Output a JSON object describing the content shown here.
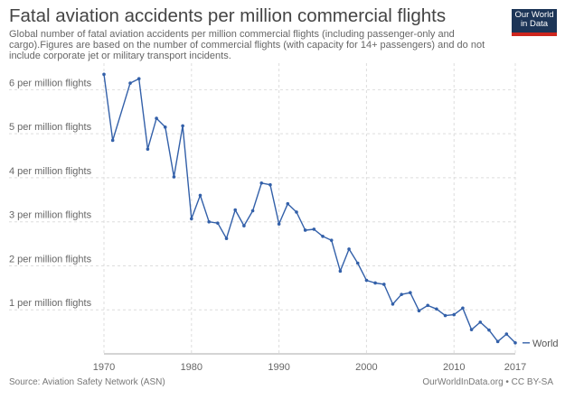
{
  "header": {
    "title": "Fatal aviation accidents per million commercial flights",
    "subtitle": "Global number of fatal aviation accidents per million commercial flights (including passenger-only and cargo).Figures are based on the number of commercial flights (with capacity for 14+ passengers) and do not include corporate jet or military transport incidents."
  },
  "logo": {
    "line1": "Our World",
    "line2": "in Data"
  },
  "footer": {
    "source": "Source: Aviation Safety Network (ASN)",
    "credit": "OurWorldInData.org • CC BY-SA"
  },
  "colors": {
    "series": "#3360a9",
    "grid": "#dddddd",
    "logo_bg": "#1d3557",
    "logo_accent": "#ce261e"
  },
  "chart_data": {
    "type": "line",
    "title": "Fatal aviation accidents per million commercial flights",
    "xlabel": "",
    "ylabel": "",
    "xlim": [
      1970,
      2017
    ],
    "ylim": [
      0,
      6.5
    ],
    "x_ticks": [
      1970,
      1980,
      1990,
      2000,
      2010,
      2017
    ],
    "y_ticks": [
      {
        "value": 1,
        "label": "1 per million flights"
      },
      {
        "value": 2,
        "label": "2 per million flights"
      },
      {
        "value": 3,
        "label": "3 per million flights"
      },
      {
        "value": 4,
        "label": "4 per million flights"
      },
      {
        "value": 5,
        "label": "5 per million flights"
      },
      {
        "value": 6,
        "label": "6 per million flights"
      }
    ],
    "grid": true,
    "legend": "right",
    "series": [
      {
        "name": "World",
        "x": [
          1970,
          1971,
          1973,
          1974,
          1975,
          1976,
          1977,
          1978,
          1979,
          1980,
          1981,
          1982,
          1983,
          1984,
          1985,
          1986,
          1987,
          1988,
          1989,
          1990,
          1991,
          1992,
          1993,
          1994,
          1995,
          1996,
          1997,
          1998,
          1999,
          2000,
          2001,
          2002,
          2003,
          2004,
          2005,
          2006,
          2007,
          2008,
          2009,
          2010,
          2011,
          2012,
          2013,
          2014,
          2015,
          2016,
          2017
        ],
        "values": [
          6.35,
          4.85,
          6.15,
          6.25,
          4.65,
          5.35,
          5.15,
          4.02,
          5.18,
          3.07,
          3.6,
          3.0,
          2.97,
          2.62,
          3.27,
          2.91,
          3.25,
          3.88,
          3.84,
          2.95,
          3.41,
          3.22,
          2.81,
          2.83,
          2.67,
          2.58,
          1.88,
          2.38,
          2.06,
          1.67,
          1.61,
          1.58,
          1.13,
          1.35,
          1.39,
          0.98,
          1.1,
          1.02,
          0.87,
          0.89,
          1.04,
          0.55,
          0.72,
          0.54,
          0.28,
          0.45,
          0.25
        ]
      }
    ]
  }
}
